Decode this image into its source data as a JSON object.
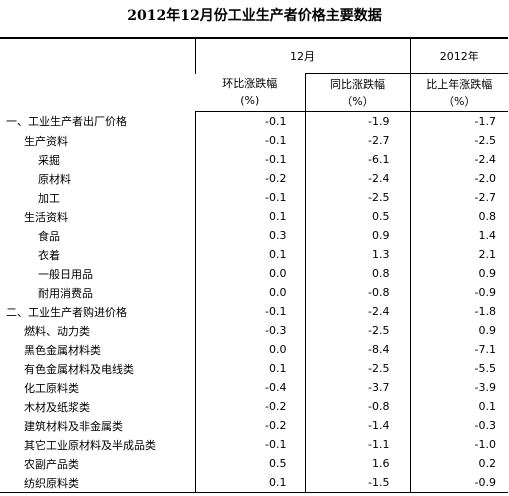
{
  "title": "2012年12月份工业生产者价格主要数据",
  "header": {
    "group1": "12月",
    "group2": "2012年",
    "columns": [
      {
        "name": "环比涨跌幅",
        "unit": "(%)"
      },
      {
        "name": "同比涨跌幅",
        "unit": "（%）"
      },
      {
        "name": "比上年涨跌幅",
        "unit": "（%）"
      }
    ]
  },
  "table": {
    "rows": [
      [
        "一、工业生产者出厂价格",
        "-0.1",
        "-1.9",
        "-1.7"
      ],
      [
        "生产资料",
        "-0.1",
        "-2.7",
        "-2.5"
      ],
      [
        "采掘",
        "-0.1",
        "-6.1",
        "-2.4"
      ],
      [
        "原材料",
        "-0.2",
        "-2.4",
        "-2.0"
      ],
      [
        "加工",
        "-0.1",
        "-2.5",
        "-2.7"
      ],
      [
        "生活资料",
        "0.1",
        "0.5",
        "0.8"
      ],
      [
        "食品",
        "0.3",
        "0.9",
        "1.4"
      ],
      [
        "衣着",
        "0.1",
        "1.3",
        "2.1"
      ],
      [
        "一般日用品",
        "0.0",
        "0.8",
        "0.9"
      ],
      [
        "耐用消费品",
        "0.0",
        "-0.8",
        "-0.9"
      ],
      [
        "二、工业生产者购进价格",
        "-0.1",
        "-2.4",
        "-1.8"
      ],
      [
        "燃料、动力类",
        "-0.3",
        "-2.5",
        "0.9"
      ],
      [
        "黑色金属材料类",
        "0.0",
        "-8.4",
        "-7.1"
      ],
      [
        "有色金属材料及电线类",
        "0.1",
        "-2.5",
        "-5.5"
      ],
      [
        "化工原料类",
        "-0.4",
        "-3.7",
        "-3.9"
      ],
      [
        "木材及纸浆类",
        "-0.2",
        "-0.8",
        "0.1"
      ],
      [
        "建筑材料及非金属类",
        "-0.2",
        "-1.4",
        "-0.3"
      ],
      [
        "其它工业原材料及半成品类",
        "-0.1",
        "-1.1",
        "-1.0"
      ],
      [
        "农副产品类",
        "0.5",
        "1.6",
        "0.2"
      ],
      [
        "纺织原料类",
        "0.1",
        "-1.5",
        "-0.9"
      ]
    ]
  }
}
